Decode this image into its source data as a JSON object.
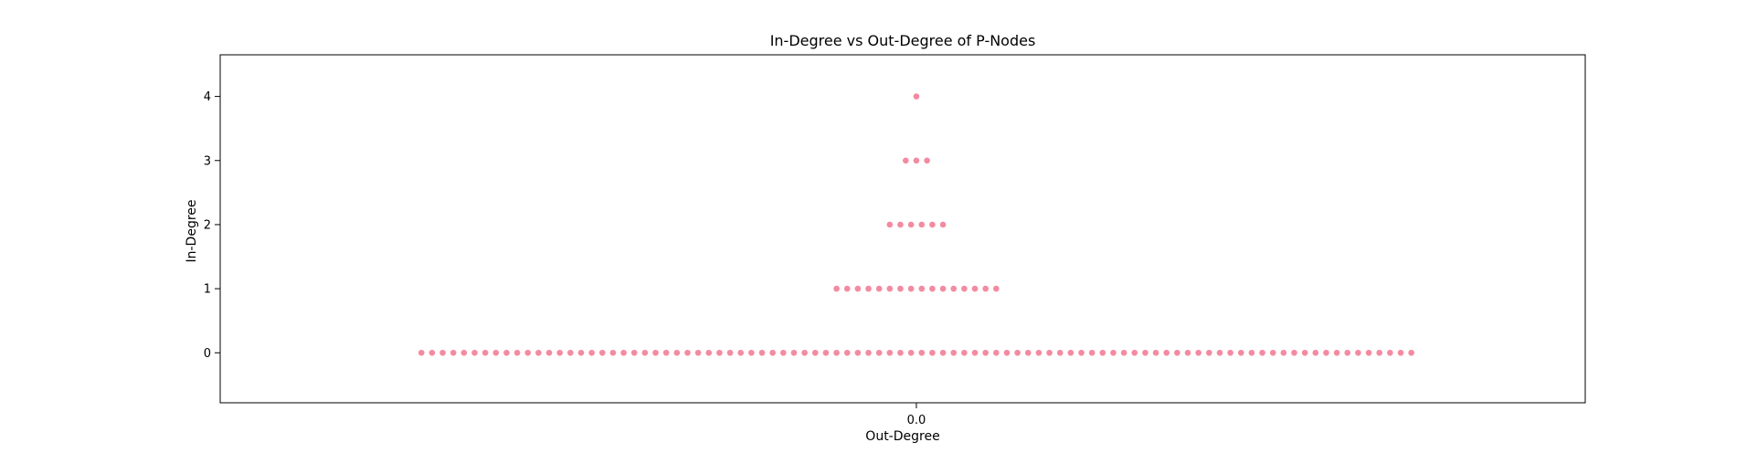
{
  "chart_data": {
    "type": "scatter",
    "title": "In-Degree vs Out-Degree of P-Nodes",
    "xlabel": "Out-Degree",
    "ylabel": "In-Degree",
    "x_ticks": [
      "0.0"
    ],
    "y_ticks": [
      0,
      1,
      2,
      3,
      4
    ],
    "ylim": [
      -0.78,
      4.65
    ],
    "grid": false,
    "marker_color": "#f48aa0",
    "groups": [
      {
        "in_degree": 0,
        "out_degree": 0.0,
        "count": 94
      },
      {
        "in_degree": 1,
        "out_degree": 0.0,
        "count": 16
      },
      {
        "in_degree": 2,
        "out_degree": 0.0,
        "count": 6
      },
      {
        "in_degree": 3,
        "out_degree": 0.0,
        "count": 3
      },
      {
        "in_degree": 4,
        "out_degree": 0.0,
        "count": 1
      }
    ]
  }
}
